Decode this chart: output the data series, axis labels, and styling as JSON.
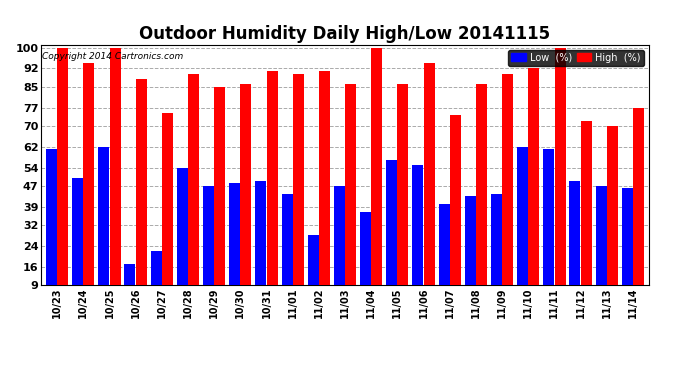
{
  "title": "Outdoor Humidity Daily High/Low 20141115",
  "copyright": "Copyright 2014 Cartronics.com",
  "categories": [
    "10/23",
    "10/24",
    "10/25",
    "10/26",
    "10/27",
    "10/28",
    "10/29",
    "10/30",
    "10/31",
    "11/01",
    "11/02",
    "11/03",
    "11/04",
    "11/05",
    "11/06",
    "11/07",
    "11/08",
    "11/09",
    "11/10",
    "11/11",
    "11/12",
    "11/13",
    "11/14"
  ],
  "high_values": [
    100,
    94,
    100,
    88,
    75,
    90,
    85,
    86,
    91,
    90,
    91,
    86,
    100,
    86,
    94,
    74,
    86,
    90,
    92,
    100,
    72,
    70,
    77
  ],
  "low_values": [
    61,
    50,
    62,
    17,
    22,
    54,
    47,
    48,
    49,
    44,
    28,
    47,
    37,
    57,
    55,
    40,
    43,
    44,
    62,
    61,
    49,
    47,
    46
  ],
  "high_color": "#ff0000",
  "low_color": "#0000ff",
  "bg_color": "#ffffff",
  "yticks": [
    9,
    16,
    24,
    32,
    39,
    47,
    54,
    62,
    70,
    77,
    85,
    92,
    100
  ],
  "ymin": 9,
  "ymax": 100,
  "grid_color": "#aaaaaa",
  "title_fontsize": 12,
  "legend_label_low": "Low  (%)",
  "legend_label_high": "High  (%)"
}
